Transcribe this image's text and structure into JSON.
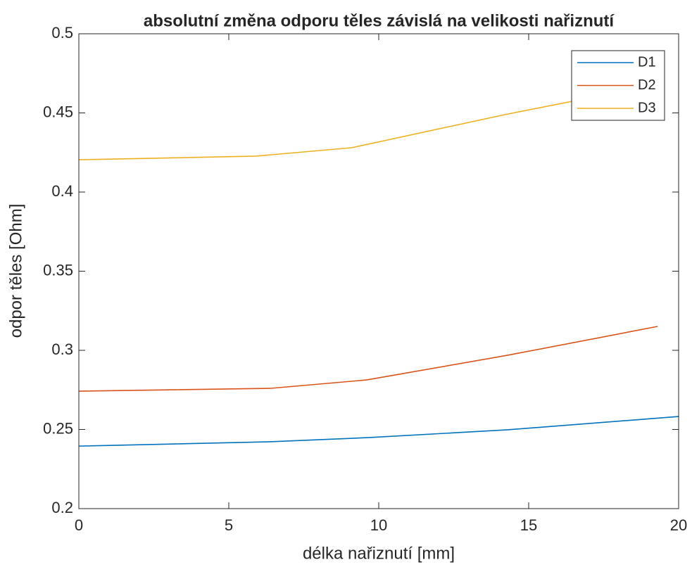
{
  "chart_data": {
    "type": "line",
    "title": "absolutní změna odporu těles závislá na velikosti nařiznutí",
    "xlabel": "délka nařiznutí [mm]",
    "ylabel": "odpor těles [Ohm]",
    "series": [
      {
        "name": "D1",
        "color": "#0072BD",
        "x": [
          0,
          6.3,
          9.7,
          14.3,
          20
        ],
        "values": [
          0.2395,
          0.2422,
          0.2449,
          0.2498,
          0.2582
        ]
      },
      {
        "name": "D2",
        "color": "#D95319",
        "x": [
          0,
          6.4,
          9.6,
          14.3,
          19.3
        ],
        "values": [
          0.2742,
          0.276,
          0.2813,
          0.2969,
          0.3151
        ]
      },
      {
        "name": "D3",
        "color": "#EDB120",
        "x": [
          0,
          5.9,
          9.1,
          14.2,
          19.3
        ],
        "values": [
          0.4204,
          0.4227,
          0.428,
          0.4489,
          0.468
        ]
      }
    ],
    "xlim": [
      0,
      20
    ],
    "xticks": [
      0,
      5,
      10,
      15,
      20
    ],
    "ylim": [
      0.2,
      0.5
    ],
    "yticks": [
      0.2,
      0.25,
      0.3,
      0.35,
      0.4,
      0.45,
      0.5
    ],
    "legend": "top-right"
  }
}
